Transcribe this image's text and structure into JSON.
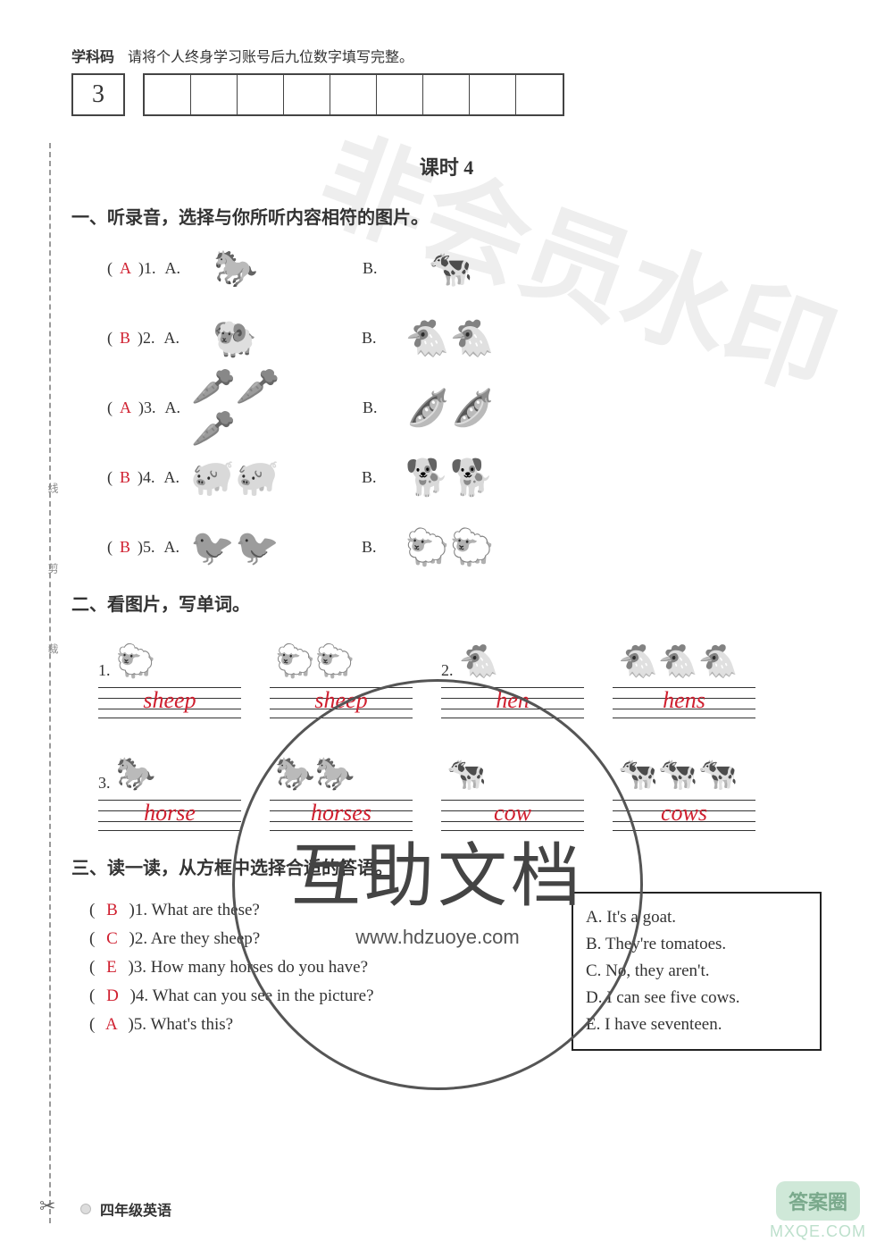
{
  "header": {
    "subject_label": "学科码",
    "instruction": "请将个人终身学习账号后九位数字填写完整。",
    "prefill": "3",
    "blank_count": 9
  },
  "lesson_title": "课时 4",
  "section1": {
    "heading": "一、听录音，选择与你所听内容相符的图片。",
    "items": [
      {
        "num": "1",
        "answer": "A",
        "optA_icons": "🐎",
        "optB_icons": "🐄"
      },
      {
        "num": "2",
        "answer": "B",
        "optA_icons": "🐏",
        "optB_icons": "🐔🐔"
      },
      {
        "num": "3",
        "answer": "A",
        "optA_icons": "🥕🥕🥕",
        "optB_icons": "🫛🫛"
      },
      {
        "num": "4",
        "answer": "B",
        "optA_icons": "🐖🐖",
        "optB_icons": "🐕🐕"
      },
      {
        "num": "5",
        "answer": "B",
        "optA_icons": "🐦🐦",
        "optB_icons": "🐑🐑"
      }
    ]
  },
  "section2": {
    "heading": "二、看图片，写单词。",
    "rows": [
      [
        {
          "label": "1.",
          "icons": "🐑",
          "word": "sheep"
        },
        {
          "label": "",
          "icons": "🐑🐑",
          "word": "sheep"
        },
        {
          "label": "2.",
          "icons": "🐔",
          "word": "hen"
        },
        {
          "label": "",
          "icons": "🐔🐔🐔",
          "word": "hens"
        }
      ],
      [
        {
          "label": "3.",
          "icons": "🐎",
          "word": "horse"
        },
        {
          "label": "",
          "icons": "🐎🐎",
          "word": "horses"
        },
        {
          "label": "",
          "icons": "🐄",
          "word": "cow"
        },
        {
          "label": "",
          "icons": "🐄🐄🐄",
          "word": "cows"
        }
      ]
    ]
  },
  "section3": {
    "heading": "三、读一读，从方框中选择合适的答语。",
    "questions": [
      {
        "answer": "B",
        "num": "1",
        "text": "What are these?"
      },
      {
        "answer": "C",
        "num": "2",
        "text": "Are they sheep?"
      },
      {
        "answer": "E",
        "num": "3",
        "text": "How many horses do you have?"
      },
      {
        "answer": "D",
        "num": "4",
        "text": "What can you see in the picture?"
      },
      {
        "answer": "A",
        "num": "5",
        "text": "What's this?"
      }
    ],
    "choices": [
      "A. It's a goat.",
      "B. They're tomatoes.",
      "C. No, they aren't.",
      "D. I can see five cows.",
      "E. I have seventeen."
    ]
  },
  "footer_text": "四年级英语",
  "cut_labels": [
    "线",
    "剪",
    "裁"
  ],
  "watermarks": {
    "angled": "非会员水印",
    "circle_main": "互助文档",
    "circle_url": "www.hdzuoye.com",
    "badge": "答案圈",
    "badge_url": "MXQE.COM"
  },
  "colors": {
    "answer": "#d02030",
    "text": "#333333",
    "border": "#444444",
    "watermark_light": "#eeeeee",
    "badge_bg": "#cfe8d8",
    "badge_fg": "#7aa98c"
  }
}
